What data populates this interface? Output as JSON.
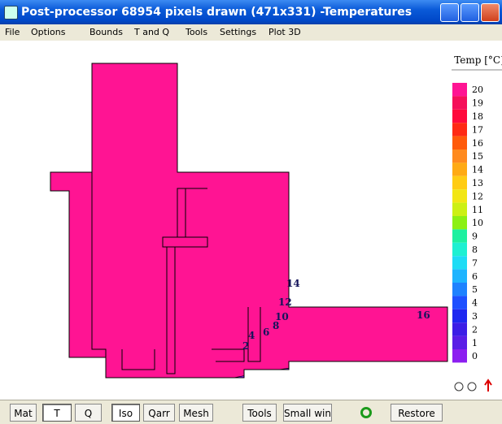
{
  "window": {
    "title": "Post-processor 68954 pixels drawn (471x331) -Temperatures"
  },
  "menu": [
    "File",
    "Options",
    "Bounds",
    "T and Q",
    "Tools",
    "Settings",
    "Plot 3D"
  ],
  "legend": {
    "title": "Temp [°C]",
    "entries": [
      {
        "value": 20,
        "color": "#ff1493"
      },
      {
        "value": 19,
        "color": "#f5105a"
      },
      {
        "value": 18,
        "color": "#ff0a3c"
      },
      {
        "value": 17,
        "color": "#ff2a14"
      },
      {
        "value": 16,
        "color": "#ff5a0a"
      },
      {
        "value": 15,
        "color": "#ff8a1e"
      },
      {
        "value": 14,
        "color": "#ffaa14"
      },
      {
        "value": 13,
        "color": "#ffcc14"
      },
      {
        "value": 12,
        "color": "#f2e614"
      },
      {
        "value": 11,
        "color": "#ccf014"
      },
      {
        "value": 10,
        "color": "#8cf014"
      },
      {
        "value": 9,
        "color": "#1ef0a0"
      },
      {
        "value": 8,
        "color": "#1ef0d2"
      },
      {
        "value": 7,
        "color": "#1edcf5"
      },
      {
        "value": 6,
        "color": "#1eb4ff"
      },
      {
        "value": 5,
        "color": "#1e82ff"
      },
      {
        "value": 4,
        "color": "#1e50ff"
      },
      {
        "value": 3,
        "color": "#1e28f0"
      },
      {
        "value": 2,
        "color": "#3c1ee6"
      },
      {
        "value": 1,
        "color": "#5a1ee6"
      },
      {
        "value": 0,
        "color": "#8c1ef0"
      }
    ]
  },
  "isotherm_labels": [
    "14",
    "12",
    "10",
    "8",
    "6",
    "4",
    "2",
    "16"
  ],
  "toolbar": [
    "Mat",
    "T",
    "Q",
    "Iso",
    "Qarr",
    "Mesh",
    "Tools",
    "Small win",
    "Restore"
  ]
}
